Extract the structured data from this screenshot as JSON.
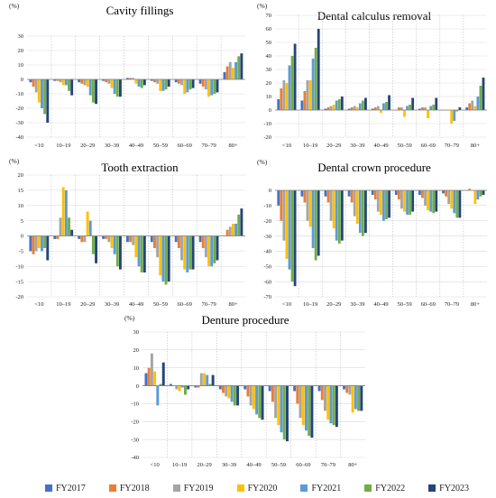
{
  "legend": {
    "items": [
      {
        "label": "FY2017",
        "color": "#4472C4"
      },
      {
        "label": "FY2018",
        "color": "#ED7D31"
      },
      {
        "label": "FY2019",
        "color": "#A5A5A5"
      },
      {
        "label": "FY2020",
        "color": "#FFC000"
      },
      {
        "label": "FY2021",
        "color": "#5B9BD5"
      },
      {
        "label": "FY2022",
        "color": "#70AD47"
      },
      {
        "label": "FY2023",
        "color": "#264478"
      }
    ]
  },
  "chart_data": [
    {
      "type": "bar",
      "title": "Cavity fillings",
      "ylabel": "(%)",
      "ylim": [
        -40,
        30
      ],
      "yticks": [
        -40,
        -30,
        -20,
        -10,
        0,
        10,
        20,
        30
      ],
      "categories": [
        "<10",
        "10–19",
        "20–29",
        "30–39",
        "40–49",
        "50–59",
        "60–69",
        "70–79",
        "80+"
      ],
      "series": [
        {
          "name": "FY2017",
          "values": [
            -2,
            -1,
            -2,
            -1,
            1,
            -1,
            -2,
            -3,
            5
          ]
        },
        {
          "name": "FY2018",
          "values": [
            -5,
            -1,
            -3,
            -2,
            1,
            -2,
            -3,
            -5,
            9
          ]
        },
        {
          "name": "FY2019",
          "values": [
            -9,
            -2,
            -4,
            -3,
            1,
            -3,
            -4,
            -7,
            12
          ]
        },
        {
          "name": "FY2020",
          "values": [
            -16,
            -4,
            -5,
            -6,
            -3,
            -8,
            -10,
            -12,
            8
          ]
        },
        {
          "name": "FY2021",
          "values": [
            -20,
            -4,
            -11,
            -10,
            -5,
            -8,
            -9,
            -11,
            12
          ]
        },
        {
          "name": "FY2022",
          "values": [
            -24,
            -8,
            -16,
            -12,
            -6,
            -7,
            -7,
            -10,
            16
          ]
        },
        {
          "name": "FY2023",
          "values": [
            -30,
            -11,
            -17,
            -12,
            -4,
            -5,
            -6,
            -9,
            18
          ]
        }
      ]
    },
    {
      "type": "bar",
      "title": "Dental calculus removal",
      "ylabel": "(%)",
      "ylim": [
        -20,
        70
      ],
      "yticks": [
        -20,
        -10,
        0,
        10,
        20,
        30,
        40,
        50,
        60,
        70
      ],
      "categories": [
        "<10",
        "10–19",
        "20–29",
        "30–39",
        "40–49",
        "50–59",
        "60–69",
        "70–79",
        "80+"
      ],
      "series": [
        {
          "name": "FY2017",
          "values": [
            8,
            7,
            1,
            1,
            1,
            0,
            1,
            0,
            2
          ]
        },
        {
          "name": "FY2018",
          "values": [
            16,
            14,
            2,
            2,
            2,
            2,
            2,
            0,
            5
          ]
        },
        {
          "name": "FY2019",
          "values": [
            22,
            22,
            3,
            3,
            3,
            2,
            2,
            0,
            7
          ]
        },
        {
          "name": "FY2020",
          "values": [
            20,
            22,
            4,
            2,
            -2,
            -5,
            -6,
            -10,
            3
          ]
        },
        {
          "name": "FY2021",
          "values": [
            33,
            38,
            7,
            5,
            5,
            3,
            3,
            -8,
            10
          ]
        },
        {
          "name": "FY2022",
          "values": [
            40,
            46,
            8,
            7,
            6,
            4,
            4,
            -1,
            18
          ]
        },
        {
          "name": "FY2023",
          "values": [
            49,
            60,
            10,
            9,
            11,
            9,
            9,
            2,
            24
          ]
        }
      ]
    },
    {
      "type": "bar",
      "title": "Tooth extraction",
      "ylabel": "(%)",
      "ylim": [
        -20,
        20
      ],
      "yticks": [
        -20,
        -15,
        -10,
        -5,
        0,
        5,
        10,
        15,
        20
      ],
      "categories": [
        "<10",
        "10–19",
        "20–29",
        "30–39",
        "40–49",
        "50–59",
        "60–69",
        "70–79",
        "80+"
      ],
      "series": [
        {
          "name": "FY2017",
          "values": [
            -5,
            -1,
            -1,
            -1,
            -2,
            -2,
            -2,
            -2,
            0
          ]
        },
        {
          "name": "FY2018",
          "values": [
            -6,
            -1,
            -2,
            -1,
            -2,
            -4,
            -4,
            -4,
            2
          ]
        },
        {
          "name": "FY2019",
          "values": [
            -5,
            6,
            -2,
            -2,
            -3,
            -7,
            -8,
            -7,
            3
          ]
        },
        {
          "name": "FY2020",
          "values": [
            -4,
            16,
            8,
            -4,
            -7,
            -13,
            -11,
            -10,
            4
          ]
        },
        {
          "name": "FY2021",
          "values": [
            -5,
            15,
            5,
            -6,
            -10,
            -15,
            -12,
            -10,
            4
          ]
        },
        {
          "name": "FY2022",
          "values": [
            -4,
            6,
            -6,
            -10,
            -12,
            -16,
            -11,
            -9,
            7
          ]
        },
        {
          "name": "FY2023",
          "values": [
            -8,
            2,
            -9,
            -11,
            -12,
            -15,
            -11,
            -8,
            9
          ]
        }
      ]
    },
    {
      "type": "bar",
      "title": "Dental crown procedure",
      "ylabel": "(%)",
      "ylim": [
        -70,
        0
      ],
      "yticks": [
        -70,
        -60,
        -50,
        -40,
        -30,
        -20,
        -10,
        0
      ],
      "categories": [
        "<10",
        "10–19",
        "20–29",
        "30–39",
        "40–49",
        "50–59",
        "60–69",
        "70–79",
        "80+"
      ],
      "series": [
        {
          "name": "FY2017",
          "values": [
            -10,
            -4,
            -4,
            -4,
            -3,
            -3,
            -3,
            -2,
            0
          ]
        },
        {
          "name": "FY2018",
          "values": [
            -20,
            -8,
            -8,
            -8,
            -6,
            -6,
            -5,
            -4,
            1
          ]
        },
        {
          "name": "FY2019",
          "values": [
            -33,
            -20,
            -20,
            -17,
            -14,
            -12,
            -10,
            -9,
            0
          ]
        },
        {
          "name": "FY2020",
          "values": [
            -45,
            -24,
            -25,
            -22,
            -16,
            -14,
            -13,
            -12,
            -9
          ]
        },
        {
          "name": "FY2021",
          "values": [
            -52,
            -38,
            -33,
            -28,
            -20,
            -16,
            -14,
            -15,
            -6
          ]
        },
        {
          "name": "FY2022",
          "values": [
            -60,
            -46,
            -35,
            -30,
            -19,
            -16,
            -15,
            -18,
            -4
          ]
        },
        {
          "name": "FY2023",
          "values": [
            -63,
            -43,
            -33,
            -28,
            -18,
            -14,
            -14,
            -18,
            -3
          ]
        }
      ]
    },
    {
      "type": "bar",
      "title": "Denture procedure",
      "ylabel": "(%)",
      "ylim": [
        -40,
        30
      ],
      "yticks": [
        -40,
        -30,
        -20,
        -10,
        0,
        10,
        20,
        30
      ],
      "categories": [
        "<10",
        "10–19",
        "20–29",
        "30–39",
        "40–49",
        "50–59",
        "60–69",
        "70–79",
        "80+"
      ],
      "series": [
        {
          "name": "FY2017",
          "values": [
            7,
            1,
            -1,
            -2,
            -2,
            -3,
            -3,
            -3,
            -2
          ]
        },
        {
          "name": "FY2018",
          "values": [
            10,
            0,
            -1,
            -4,
            -6,
            -9,
            -10,
            -8,
            -4
          ]
        },
        {
          "name": "FY2019",
          "values": [
            18,
            -2,
            7,
            -6,
            -11,
            -18,
            -18,
            -14,
            -5
          ]
        },
        {
          "name": "FY2020",
          "values": [
            8,
            -3,
            7,
            -7,
            -13,
            -22,
            -22,
            -19,
            -15
          ]
        },
        {
          "name": "FY2021",
          "values": [
            -11,
            -1,
            6,
            -9,
            -16,
            -26,
            -25,
            -21,
            -13
          ]
        },
        {
          "name": "FY2022",
          "values": [
            1,
            -5,
            1,
            -11,
            -18,
            -30,
            -28,
            -22,
            -14
          ]
        },
        {
          "name": "FY2023",
          "values": [
            13,
            -2,
            6,
            -11,
            -19,
            -31,
            -29,
            -23,
            -14
          ]
        }
      ]
    }
  ]
}
